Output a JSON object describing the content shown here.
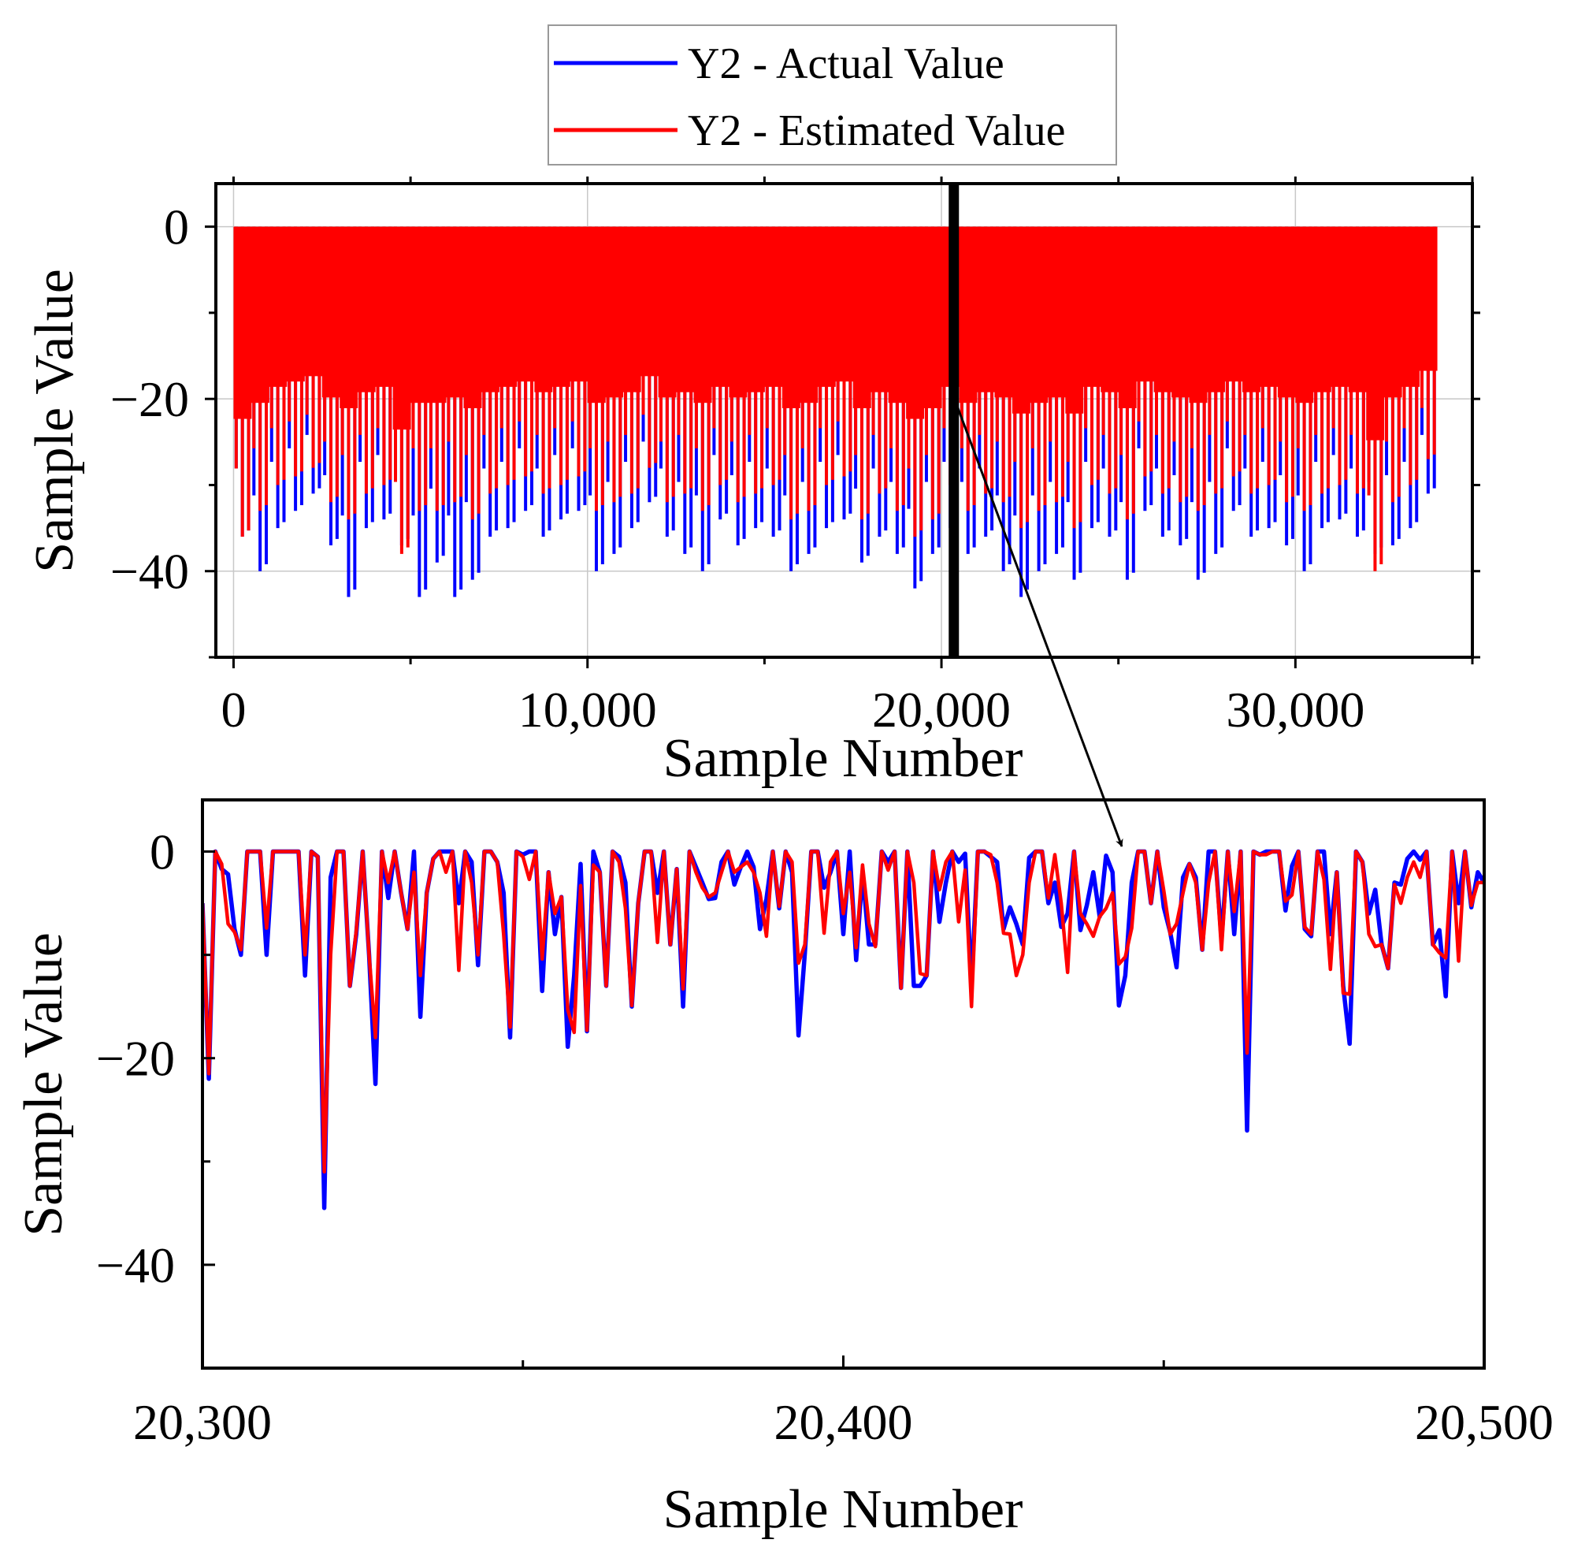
{
  "chart_data": [
    {
      "type": "line",
      "title": "",
      "xlabel": "Sample Number",
      "ylabel": "Sample Value",
      "xlim": [
        -500,
        35000
      ],
      "ylim": [
        -50,
        5
      ],
      "grid": true,
      "x_ticks": [
        0,
        10000,
        20000,
        30000
      ],
      "x_tick_labels": [
        "0",
        "10,000",
        "20,000",
        "30,000"
      ],
      "y_ticks": [
        0,
        -20,
        -40
      ],
      "y_tick_labels": [
        "0",
        "−20",
        "−40"
      ],
      "highlight_x": 20350,
      "bin_size": 500,
      "series": [
        {
          "name": "Y2 - Actual Value",
          "color": "#0000ff",
          "values_note": "per-bin minimum, max is 0",
          "bin_min": [
            -36,
            -40,
            -35,
            -33,
            -31,
            -37,
            -43,
            -35,
            -34,
            -37,
            -43,
            -39,
            -43,
            -41,
            -36,
            -35,
            -33,
            -36,
            -34,
            -33,
            -40,
            -38,
            -35,
            -32,
            -36,
            -38,
            -40,
            -34,
            -37,
            -35,
            -36,
            -40,
            -38,
            -35,
            -34,
            -39,
            -36,
            -38,
            -42,
            -38,
            -35,
            -38,
            -36,
            -40,
            -43,
            -40,
            -38,
            -41,
            -35,
            -36,
            -41,
            -33,
            -36,
            -37,
            -41,
            -38,
            -33,
            -36,
            -35,
            -37,
            -40,
            -35,
            -34,
            -36,
            -38,
            -37,
            -35,
            -31
          ]
        },
        {
          "name": "Y2 - Estimated Value",
          "color": "#ff0000",
          "values_note": "per-bin minimum, max is 0",
          "bin_min": [
            -36,
            -33,
            -30,
            -29,
            -28,
            -32,
            -34,
            -31,
            -30,
            -38,
            -33,
            -33,
            -32,
            -34,
            -31,
            -30,
            -29,
            -31,
            -30,
            -29,
            -33,
            -32,
            -31,
            -28,
            -32,
            -31,
            -33,
            -30,
            -32,
            -31,
            -30,
            -34,
            -33,
            -30,
            -29,
            -34,
            -31,
            -33,
            -36,
            -34,
            -30,
            -33,
            -31,
            -32,
            -35,
            -33,
            -32,
            -35,
            -30,
            -31,
            -34,
            -29,
            -31,
            -32,
            -33,
            -31,
            -29,
            -31,
            -30,
            -32,
            -33,
            -31,
            -30,
            -31,
            -40,
            -32,
            -30,
            -27
          ]
        }
      ]
    },
    {
      "type": "line",
      "title": "",
      "xlabel": "Sample Number",
      "ylabel": "Sample Value",
      "xlim": [
        20300,
        20500
      ],
      "ylim": [
        -50,
        5
      ],
      "grid": false,
      "x_start": 20300,
      "x_ticks": [
        20300,
        20400,
        20500
      ],
      "x_tick_labels": [
        "20,300",
        "20,400",
        "20,500"
      ],
      "y_ticks": [
        0,
        -20,
        -40
      ],
      "y_tick_labels": [
        "0",
        "−20",
        "−40"
      ],
      "series": [
        {
          "name": "Y2 - Actual Value",
          "color": "#0000ff",
          "values": [
            -5,
            -22,
            0,
            -1.7,
            -2.2,
            -7.5,
            -10,
            0,
            0,
            0,
            -10,
            0,
            0,
            0,
            0,
            0,
            -12,
            0,
            -0.5,
            -34.5,
            -2.5,
            0,
            0,
            -13,
            -8,
            0,
            -10,
            -22.5,
            0,
            -4.5,
            0,
            -4,
            -7.5,
            0,
            -16,
            -4,
            -0.7,
            0,
            0,
            0,
            -5,
            0,
            -1,
            -11,
            0,
            0,
            -1,
            -4,
            -18,
            0,
            -0.3,
            0,
            0,
            -13.5,
            -2,
            -8,
            -4.4,
            -18.9,
            -12,
            -1.2,
            -17.4,
            0,
            -2,
            -13,
            0,
            -0.5,
            -3,
            -15,
            -5,
            0,
            0,
            -4,
            0,
            -9,
            -1.7,
            -15,
            0,
            -1.5,
            -3,
            -4.6,
            -4.5,
            -1,
            0,
            -3.2,
            -1.5,
            0,
            -1.5,
            -7.5,
            -4.6,
            0,
            -5.5,
            0,
            -2,
            -17.8,
            -9.8,
            0,
            0,
            -3.5,
            -2,
            0,
            -8,
            0,
            -10.5,
            -2,
            -9,
            -9,
            0,
            -1,
            0,
            -13.2,
            0,
            -13,
            -13,
            -12,
            0,
            -6.8,
            -3,
            0,
            -1,
            -0.2,
            -13,
            0,
            0,
            -0.5,
            -1,
            -7.5,
            -5.4,
            -7,
            -9,
            -0.6,
            0,
            0,
            -5,
            -3,
            -7.3,
            -6,
            0,
            -7.6,
            -5.2,
            -2,
            -6.3,
            -0.4,
            -2,
            -14.9,
            -12,
            -3,
            0,
            0,
            -5,
            0,
            -5.4,
            -7.8,
            -11.2,
            -2.5,
            -1.2,
            -2.5,
            -9.5,
            0,
            0,
            -8.5,
            0,
            -8,
            0,
            -27,
            0,
            -0.3,
            0,
            0,
            0,
            -5.7,
            -1.4,
            0,
            -7.5,
            -8.2,
            0,
            0,
            -8,
            -2,
            -13,
            -18.6,
            0,
            -1,
            -6,
            -3.7,
            -9,
            -11.3,
            -3,
            -3.2,
            -0.7,
            0,
            -0.8,
            0,
            -9,
            -7.6,
            -14,
            0,
            -5,
            0,
            -5.4,
            -2,
            -3
          ]
        },
        {
          "name": "Y2 - Estimated Value",
          "color": "#ff0000",
          "values": [
            -5,
            -21.5,
            0,
            -1.2,
            -7,
            -7.8,
            -9.5,
            0,
            0,
            0,
            -7.4,
            0,
            0,
            0,
            0,
            0,
            -10,
            0,
            -0.5,
            -31,
            -10,
            0,
            0,
            -13,
            -7.7,
            0,
            -10,
            -18,
            0,
            -3,
            0,
            -4,
            -7.5,
            -2,
            -12,
            -4,
            -0.7,
            0,
            -2,
            0,
            -11.5,
            0,
            -3,
            -10,
            0,
            0,
            -1,
            -8,
            -17,
            0,
            -0.5,
            -2.7,
            0,
            -10.4,
            -2,
            -6,
            -4.4,
            -15.3,
            -17.5,
            -3.3,
            -17.3,
            -1.3,
            -2,
            -13,
            0,
            -1,
            -5.5,
            -14.9,
            -5,
            0,
            0,
            -8.8,
            0,
            -9,
            -1.7,
            -13.3,
            0,
            -2,
            -3.5,
            -4.4,
            -4,
            -2,
            0,
            -2,
            -1.5,
            -1,
            -2,
            -4,
            -8.2,
            0,
            -5.3,
            0,
            -1,
            -10.8,
            -9,
            0,
            0,
            -7.9,
            -1,
            0,
            -6,
            -2,
            -9.3,
            -1.3,
            -7,
            -9.2,
            0,
            -1.8,
            0,
            -13.2,
            0,
            -3,
            -11.8,
            -12,
            0,
            -3.7,
            -1,
            0,
            -6.8,
            -1.8,
            -15,
            0,
            0,
            -0.3,
            -3,
            -7.9,
            -8,
            -12,
            -10,
            -3,
            0,
            0,
            -4.5,
            -0.3,
            -5,
            -11.7,
            0,
            -6,
            -7,
            -8.2,
            -6.3,
            -5.5,
            -4,
            -10.9,
            -10.2,
            -7.4,
            0,
            0,
            -5,
            0,
            -3.8,
            -8,
            -7,
            -4,
            -1.2,
            -3,
            -9.5,
            -3,
            0,
            -9.5,
            0,
            -5.8,
            0,
            -19.5,
            0,
            -0.3,
            -0.3,
            0,
            0,
            -4.8,
            -4.2,
            0,
            -7.3,
            -8,
            0,
            -2.7,
            -11.4,
            -2,
            -13.7,
            -13.8,
            0,
            -1,
            -8,
            -9.2,
            -9,
            -11.3,
            -3.2,
            -5,
            -2.5,
            -1,
            -2.5,
            0,
            -9,
            -9.8,
            -10.3,
            0,
            -10.6,
            0,
            -5.2,
            -3,
            -3
          ]
        }
      ]
    }
  ],
  "legend": {
    "placement": "top-center",
    "items": [
      {
        "label": "Y2 - Actual Value",
        "color": "#0000ff"
      },
      {
        "label": "Y2 - Estimated Value",
        "color": "#ff0000"
      }
    ]
  }
}
